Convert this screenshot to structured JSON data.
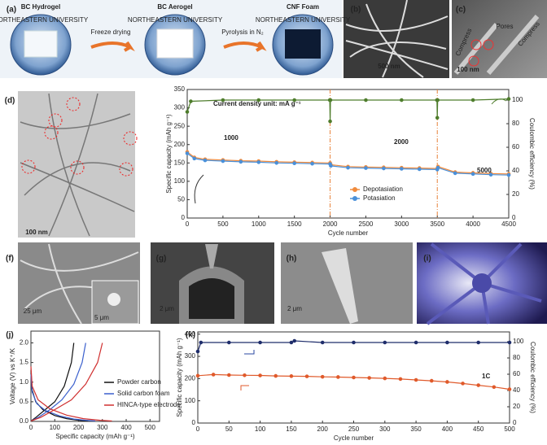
{
  "panel_labels": [
    "(a)",
    "(b)",
    "(c)",
    "(d)",
    "(f)",
    "(g)",
    "(h)",
    "(i)",
    "(j)",
    "(k)"
  ],
  "photos": {
    "a": {
      "steps": [
        "BC Hydrogel",
        "BC Aerogel",
        "CNF Foam"
      ],
      "arrows": [
        "Freeze drying",
        "Pyrolysis in N₂"
      ],
      "seal_text": "NORTHEASTERN UNIVERSITY"
    },
    "b": {
      "scale_bar": "500 nm"
    },
    "c": {
      "scale_bar": "100 nm",
      "labels": [
        "Pores",
        "Compress",
        "Compress"
      ]
    },
    "d": {
      "scale_bar": "100 nm"
    },
    "f": {
      "scale_bar": "25 μm",
      "inset_scale_bar": "5 μm"
    },
    "g": {
      "scale_bar": "2 μm"
    },
    "h": {
      "scale_bar": "2 μm"
    }
  },
  "chart_data": [
    {
      "type": "line",
      "x_label": "Cycle number",
      "y_label": "Specific capacity (mAh g⁻¹)",
      "y2_label": "Coulombic efficiency (%)",
      "xlim": [
        0,
        4500
      ],
      "xticks": [
        0,
        500,
        1000,
        1500,
        2000,
        2500,
        3000,
        3500,
        4000,
        4500
      ],
      "ylim": [
        0,
        350
      ],
      "yticks": [
        0,
        50,
        100,
        150,
        200,
        250,
        300,
        350
      ],
      "y2lim": [
        0,
        109
      ],
      "y2ticks": [
        0,
        20,
        40,
        60,
        80,
        100
      ],
      "annotations": [
        "Current density unit: mA g⁻¹",
        "1000",
        "2000",
        "5000"
      ],
      "vlines": [
        2000,
        3500
      ],
      "vline_color": "#e8823a",
      "markers": true,
      "series": [
        {
          "name": "Depotasiation",
          "color": "#f08a3c",
          "x": [
            0,
            100,
            250,
            500,
            750,
            1000,
            1250,
            1500,
            1750,
            2000,
            2010,
            2250,
            2500,
            2750,
            3000,
            3250,
            3500,
            3510,
            3750,
            4000,
            4250,
            4500
          ],
          "values": [
            180,
            165,
            160,
            158,
            156,
            155,
            153,
            152,
            151,
            150,
            145,
            140,
            139,
            138,
            137,
            136,
            135,
            140,
            125,
            123,
            121,
            120
          ]
        },
        {
          "name": "Potasiation",
          "color": "#4a90d9",
          "x": [
            0,
            100,
            250,
            500,
            750,
            1000,
            1250,
            1500,
            1750,
            2000,
            2010,
            2250,
            2500,
            2750,
            3000,
            3250,
            3500,
            3510,
            3750,
            4000,
            4250,
            4500
          ],
          "values": [
            176,
            162,
            157,
            155,
            153,
            152,
            150,
            149,
            148,
            147,
            142,
            137,
            136,
            135,
            134,
            133,
            132,
            137,
            122,
            120,
            118,
            117
          ]
        },
        {
          "color": "#4e7d2c",
          "axis": "y2",
          "x": [
            0,
            50,
            500,
            1000,
            1500,
            1995,
            2000,
            2005,
            2500,
            3000,
            3495,
            3500,
            3505,
            4000,
            4500
          ],
          "values": [
            90,
            99,
            100,
            100,
            100,
            100,
            82,
            100,
            100,
            100,
            100,
            85,
            100,
            100,
            101
          ]
        }
      ]
    },
    {
      "type": "line",
      "x_label": "Specific capacity (mAh g⁻¹)",
      "y_label": "Voltage (V) vs K⁺/K",
      "xlim": [
        0,
        540
      ],
      "xticks": [
        0,
        100,
        200,
        300,
        400,
        500
      ],
      "ylim": [
        0,
        2.3
      ],
      "yticks": [
        {
          "value": 0,
          "label": "0.0"
        },
        0.5,
        {
          "value": 1,
          "label": "1.0"
        },
        1.5,
        {
          "value": 2,
          "label": "2.0"
        }
      ],
      "series": [
        {
          "name": "Powder carbon",
          "color": "#111111",
          "x": [
            0,
            5,
            20,
            50,
            100,
            150,
            200,
            240,
            null,
            0,
            20,
            60,
            100,
            140,
            170,
            180
          ],
          "values": [
            1.3,
            0.8,
            0.5,
            0.3,
            0.15,
            0.07,
            0.03,
            0.01,
            null,
            0.01,
            0.1,
            0.3,
            0.5,
            0.9,
            1.5,
            2.0
          ]
        },
        {
          "name": "Solid carbon foam",
          "color": "#3a5fcd",
          "x": [
            0,
            5,
            25,
            60,
            120,
            180,
            230,
            270,
            null,
            0,
            30,
            80,
            130,
            180,
            215,
            230
          ],
          "values": [
            1.2,
            0.75,
            0.45,
            0.28,
            0.14,
            0.06,
            0.03,
            0.01,
            null,
            0.01,
            0.1,
            0.3,
            0.55,
            0.95,
            1.5,
            2.0
          ]
        },
        {
          "name": "HINCA-type electrode",
          "color": "#d03030",
          "x": [
            0,
            5,
            30,
            80,
            150,
            220,
            290,
            340,
            null,
            0,
            40,
            100,
            170,
            230,
            280,
            300
          ],
          "values": [
            1.4,
            0.9,
            0.55,
            0.32,
            0.16,
            0.07,
            0.03,
            0.01,
            null,
            0.01,
            0.1,
            0.3,
            0.55,
            0.95,
            1.5,
            2.0
          ]
        }
      ]
    },
    {
      "type": "line",
      "x_label": "Cycle number",
      "y_label": "Specific capacity (mAh g⁻¹)",
      "y2_label": "Coulombic efficiency (%)",
      "xlim": [
        0,
        500
      ],
      "xticks": [
        0,
        50,
        100,
        150,
        200,
        250,
        300,
        350,
        400,
        450,
        500
      ],
      "ylim": [
        0,
        410
      ],
      "yticks": [
        0,
        100,
        200,
        300,
        400
      ],
      "y2lim": [
        0,
        112
      ],
      "y2ticks": [
        0,
        20,
        40,
        60,
        80,
        100
      ],
      "annotations": [
        "1C"
      ],
      "markers": true,
      "series": [
        {
          "color": "#e05a2b",
          "x": [
            0,
            25,
            50,
            75,
            100,
            125,
            150,
            175,
            200,
            225,
            250,
            275,
            300,
            325,
            350,
            375,
            400,
            425,
            450,
            475,
            500
          ],
          "values": [
            213,
            218,
            216,
            215,
            214,
            212,
            211,
            210,
            208,
            207,
            205,
            203,
            201,
            198,
            194,
            190,
            185,
            178,
            170,
            162,
            152
          ]
        },
        {
          "color": "#1f2d6b",
          "axis": "y2",
          "x": [
            0,
            5,
            50,
            100,
            150,
            155,
            200,
            250,
            300,
            350,
            400,
            450,
            500
          ],
          "values": [
            88,
            99,
            99,
            99,
            99,
            101,
            99,
            99,
            99,
            99,
            99,
            99,
            99
          ]
        }
      ]
    }
  ]
}
